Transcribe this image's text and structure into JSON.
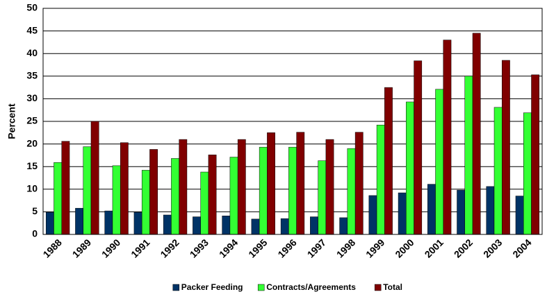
{
  "chart_data": {
    "type": "bar",
    "y_label": "Percent",
    "categories": [
      "1988",
      "1989",
      "1990",
      "1991",
      "1992",
      "1993",
      "1994",
      "1995",
      "1996",
      "1997",
      "1998",
      "1999",
      "2000",
      "2001",
      "2002",
      "2003",
      "2004"
    ],
    "series": [
      {
        "name": "Packer Feeding",
        "color": "#003366",
        "values": [
          4.9,
          5.8,
          5.2,
          4.9,
          4.3,
          3.9,
          4.1,
          3.4,
          3.5,
          3.9,
          3.7,
          8.6,
          9.2,
          11.1,
          9.8,
          10.6,
          8.5
        ]
      },
      {
        "name": "Contracts/Agreements",
        "color": "#33ff33",
        "values": [
          15.9,
          19.4,
          15.2,
          14.2,
          16.8,
          13.8,
          17.1,
          19.3,
          19.3,
          16.3,
          19.0,
          24.2,
          29.3,
          32.1,
          35.0,
          28.1,
          26.9
        ]
      },
      {
        "name": "Total",
        "color": "#800000",
        "values": [
          20.6,
          25.0,
          20.3,
          18.8,
          21.0,
          17.6,
          21.0,
          22.5,
          22.6,
          21.0,
          22.6,
          32.5,
          38.4,
          43.0,
          44.5,
          38.5,
          35.3
        ]
      }
    ],
    "ylim": [
      0,
      50
    ],
    "yticks": [
      0,
      5,
      10,
      15,
      20,
      25,
      30,
      35,
      40,
      45,
      50
    ],
    "grid": true,
    "legend": "bottom"
  }
}
